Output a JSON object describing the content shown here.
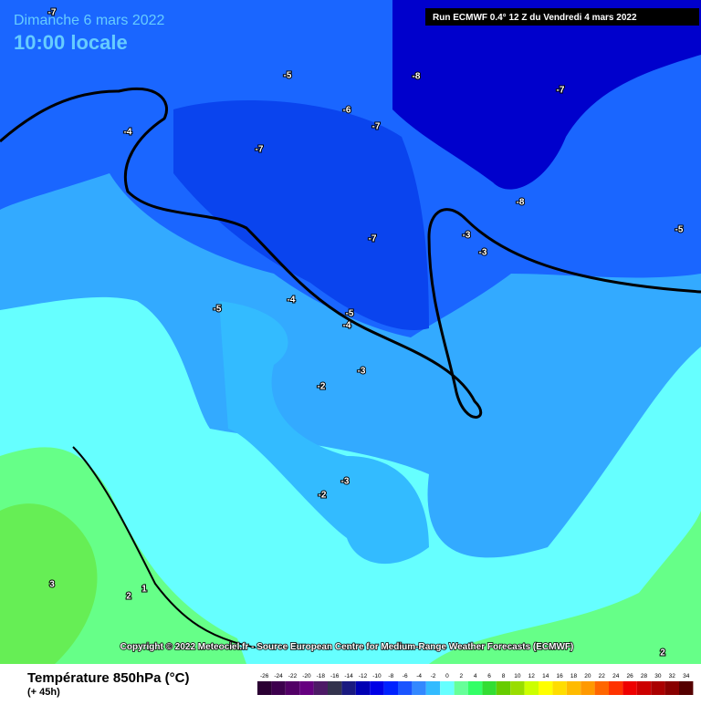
{
  "header": {
    "date": "Dimanche 6 mars 2022",
    "time": "10:00 locale",
    "run": "Run ECMWF 0.4° 12 Z du Vendredi 4 mars 2022"
  },
  "map": {
    "labels": [
      -7,
      -5,
      -8,
      -7,
      -6,
      -7,
      -4,
      -7,
      -8,
      -5,
      -7,
      -3,
      -3,
      -4,
      -5,
      -5,
      -4,
      -3,
      -2,
      -3,
      -2,
      3,
      1,
      2,
      2
    ]
  },
  "copyright": "Copyright © 2022 Meteociel.fr - Source European Centre for Medium-Range Weather Forecasts (ECMWF)",
  "legend": {
    "title": "Température 850hPa (°C)",
    "subtitle": "(+ 45h)",
    "ticks": [
      -26,
      -24,
      -22,
      -20,
      -18,
      -16,
      -14,
      -12,
      -10,
      -8,
      -6,
      -4,
      -2,
      0,
      2,
      4,
      6,
      8,
      10,
      12,
      14,
      16,
      18,
      20,
      22,
      24,
      26,
      28,
      30,
      32,
      34
    ],
    "colors": [
      "#2b0033",
      "#3d004d",
      "#520066",
      "#660080",
      "#4d1a66",
      "#33334d",
      "#1a1a80",
      "#0000b3",
      "#0000e6",
      "#0022ff",
      "#1a55ff",
      "#3388ff",
      "#33bbff",
      "#66ffff",
      "#66ff99",
      "#33ff66",
      "#33dd33",
      "#66cc00",
      "#99dd00",
      "#ccff00",
      "#ffff00",
      "#ffdd00",
      "#ffbb00",
      "#ff9900",
      "#ff6600",
      "#ff3300",
      "#ee0000",
      "#cc0000",
      "#aa0000",
      "#880000",
      "#550000"
    ]
  }
}
